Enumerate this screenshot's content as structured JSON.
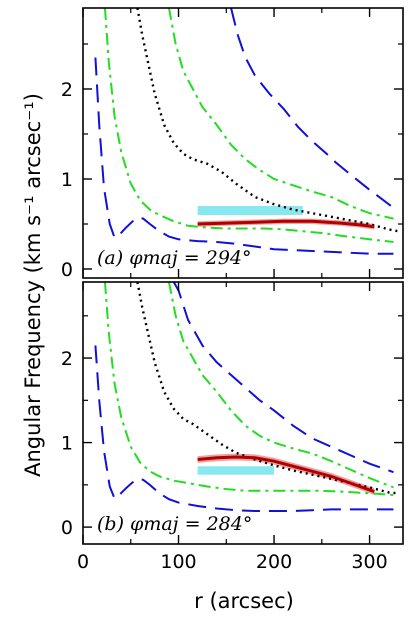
{
  "chart_data": [
    {
      "type": "line",
      "panel": "a",
      "annotation": "(a) φmaj = 294°",
      "xlim": [
        0,
        335
      ],
      "ylim": [
        -0.1,
        2.9
      ],
      "x_ticks": [
        0,
        100,
        200,
        300
      ],
      "y_ticks": [
        0,
        1,
        2
      ],
      "x_tick_labels_shown": false,
      "series": [
        {
          "style": "dashed",
          "color": "#1010d8",
          "points": [
            [
              13,
              2.35
            ],
            [
              17,
              1.6
            ],
            [
              22,
              0.9
            ],
            [
              28,
              0.5
            ],
            [
              33,
              0.35
            ],
            [
              38,
              0.38
            ],
            [
              45,
              0.46
            ],
            [
              52,
              0.53
            ],
            [
              58,
              0.57
            ],
            [
              63,
              0.56
            ],
            [
              70,
              0.5
            ],
            [
              80,
              0.42
            ],
            [
              90,
              0.36
            ],
            [
              100,
              0.33
            ],
            [
              120,
              0.31
            ],
            [
              140,
              0.3
            ],
            [
              160,
              0.28
            ],
            [
              180,
              0.25
            ],
            [
              200,
              0.22
            ],
            [
              220,
              0.21
            ],
            [
              240,
              0.2
            ],
            [
              260,
              0.19
            ],
            [
              280,
              0.18
            ],
            [
              300,
              0.17
            ],
            [
              325,
              0.17
            ]
          ]
        },
        {
          "style": "dashdot",
          "color": "#22dd22",
          "points": [
            [
              23,
              2.9
            ],
            [
              27,
              2.3
            ],
            [
              33,
              1.7
            ],
            [
              40,
              1.3
            ],
            [
              50,
              0.95
            ],
            [
              60,
              0.76
            ],
            [
              70,
              0.66
            ],
            [
              80,
              0.6
            ],
            [
              95,
              0.53
            ],
            [
              110,
              0.48
            ],
            [
              130,
              0.46
            ],
            [
              150,
              0.45
            ],
            [
              170,
              0.45
            ],
            [
              190,
              0.45
            ],
            [
              210,
              0.44
            ],
            [
              230,
              0.42
            ],
            [
              250,
              0.4
            ],
            [
              270,
              0.37
            ],
            [
              300,
              0.33
            ],
            [
              325,
              0.3
            ]
          ]
        },
        {
          "style": "dotted",
          "color": "#000000",
          "points": [
            [
              57,
              2.9
            ],
            [
              62,
              2.6
            ],
            [
              68,
              2.3
            ],
            [
              75,
              1.95
            ],
            [
              85,
              1.6
            ],
            [
              95,
              1.4
            ],
            [
              105,
              1.28
            ],
            [
              115,
              1.22
            ],
            [
              130,
              1.17
            ],
            [
              145,
              1.08
            ],
            [
              160,
              0.95
            ],
            [
              180,
              0.8
            ],
            [
              200,
              0.72
            ],
            [
              220,
              0.66
            ],
            [
              240,
              0.62
            ],
            [
              260,
              0.58
            ],
            [
              280,
              0.54
            ],
            [
              300,
              0.5
            ],
            [
              320,
              0.44
            ],
            [
              330,
              0.42
            ]
          ]
        },
        {
          "style": "dashdot",
          "color": "#22dd22",
          "points": [
            [
              90,
              2.9
            ],
            [
              97,
              2.5
            ],
            [
              105,
              2.2
            ],
            [
              115,
              2.0
            ],
            [
              125,
              1.8
            ],
            [
              140,
              1.6
            ],
            [
              155,
              1.38
            ],
            [
              170,
              1.22
            ],
            [
              185,
              1.1
            ],
            [
              200,
              1.0
            ],
            [
              220,
              0.93
            ],
            [
              240,
              0.86
            ],
            [
              260,
              0.8
            ],
            [
              280,
              0.7
            ],
            [
              300,
              0.62
            ],
            [
              325,
              0.56
            ]
          ]
        },
        {
          "style": "dashed",
          "color": "#1010d8",
          "points": [
            [
              155,
              2.9
            ],
            [
              162,
              2.6
            ],
            [
              170,
              2.35
            ],
            [
              180,
              2.15
            ],
            [
              195,
              1.95
            ],
            [
              210,
              1.78
            ],
            [
              225,
              1.58
            ],
            [
              240,
              1.42
            ],
            [
              255,
              1.28
            ],
            [
              265,
              1.18
            ],
            [
              280,
              1.05
            ],
            [
              300,
              0.88
            ],
            [
              325,
              0.68
            ]
          ]
        }
      ],
      "band": {
        "color": "#88e8f0",
        "x": [
          120,
          230
        ],
        "y_low": 0.6,
        "y_high": 0.7
      },
      "model": {
        "color": "#b00000",
        "band_color": "#f0a0a0",
        "points": [
          [
            120,
            0.5
          ],
          [
            150,
            0.51
          ],
          [
            180,
            0.52
          ],
          [
            210,
            0.53
          ],
          [
            240,
            0.53
          ],
          [
            270,
            0.51
          ],
          [
            290,
            0.49
          ],
          [
            305,
            0.47
          ]
        ],
        "halfwidth": 0.03
      }
    },
    {
      "type": "line",
      "panel": "b",
      "annotation": "(b) φmaj = 284°",
      "xlim": [
        0,
        335
      ],
      "ylim": [
        -0.2,
        2.9
      ],
      "x_ticks": [
        0,
        100,
        200,
        300
      ],
      "y_ticks": [
        0,
        1,
        2
      ],
      "x_tick_labels": [
        "0",
        "100",
        "200",
        "300"
      ],
      "xlabel": "r (arcsec)",
      "series": [
        {
          "style": "dashed",
          "color": "#1010d8",
          "points": [
            [
              13,
              2.15
            ],
            [
              17,
              1.5
            ],
            [
              22,
              0.9
            ],
            [
              28,
              0.48
            ],
            [
              33,
              0.34
            ],
            [
              38,
              0.38
            ],
            [
              45,
              0.46
            ],
            [
              52,
              0.53
            ],
            [
              58,
              0.57
            ],
            [
              63,
              0.56
            ],
            [
              70,
              0.5
            ],
            [
              80,
              0.4
            ],
            [
              90,
              0.33
            ],
            [
              100,
              0.29
            ],
            [
              120,
              0.25
            ],
            [
              140,
              0.22
            ],
            [
              160,
              0.2
            ],
            [
              180,
              0.19
            ],
            [
              200,
              0.19
            ],
            [
              220,
              0.19
            ],
            [
              240,
              0.2
            ],
            [
              260,
              0.21
            ],
            [
              280,
              0.21
            ],
            [
              300,
              0.21
            ],
            [
              325,
              0.21
            ]
          ]
        },
        {
          "style": "dashdot",
          "color": "#22dd22",
          "points": [
            [
              23,
              2.9
            ],
            [
              27,
              2.3
            ],
            [
              33,
              1.7
            ],
            [
              40,
              1.3
            ],
            [
              50,
              0.95
            ],
            [
              60,
              0.76
            ],
            [
              70,
              0.66
            ],
            [
              80,
              0.6
            ],
            [
              95,
              0.55
            ],
            [
              110,
              0.52
            ],
            [
              130,
              0.48
            ],
            [
              150,
              0.45
            ],
            [
              170,
              0.43
            ],
            [
              190,
              0.43
            ],
            [
              210,
              0.43
            ],
            [
              230,
              0.43
            ],
            [
              250,
              0.43
            ],
            [
              270,
              0.42
            ],
            [
              300,
              0.4
            ],
            [
              325,
              0.38
            ]
          ]
        },
        {
          "style": "dotted",
          "color": "#000000",
          "points": [
            [
              57,
              2.9
            ],
            [
              62,
              2.6
            ],
            [
              68,
              2.3
            ],
            [
              75,
              1.95
            ],
            [
              85,
              1.6
            ],
            [
              95,
              1.4
            ],
            [
              105,
              1.28
            ],
            [
              115,
              1.22
            ],
            [
              130,
              1.1
            ],
            [
              145,
              0.98
            ],
            [
              160,
              0.88
            ],
            [
              180,
              0.8
            ],
            [
              200,
              0.73
            ],
            [
              220,
              0.67
            ],
            [
              240,
              0.62
            ],
            [
              260,
              0.57
            ],
            [
              280,
              0.52
            ],
            [
              300,
              0.47
            ],
            [
              320,
              0.41
            ],
            [
              330,
              0.4
            ]
          ]
        },
        {
          "style": "dashdot",
          "color": "#22dd22",
          "points": [
            [
              90,
              2.9
            ],
            [
              97,
              2.5
            ],
            [
              105,
              2.2
            ],
            [
              115,
              2.0
            ],
            [
              125,
              1.8
            ],
            [
              140,
              1.6
            ],
            [
              155,
              1.38
            ],
            [
              170,
              1.2
            ],
            [
              185,
              1.08
            ],
            [
              200,
              1.0
            ],
            [
              220,
              0.93
            ],
            [
              240,
              0.87
            ],
            [
              260,
              0.78
            ],
            [
              280,
              0.68
            ],
            [
              300,
              0.58
            ],
            [
              325,
              0.47
            ]
          ]
        },
        {
          "style": "dashed",
          "color": "#1010d8",
          "points": [
            [
              95,
              2.9
            ],
            [
              100,
              2.8
            ],
            [
              110,
              2.45
            ],
            [
              125,
              2.15
            ],
            [
              140,
              1.95
            ],
            [
              155,
              1.8
            ],
            [
              170,
              1.65
            ],
            [
              185,
              1.5
            ],
            [
              200,
              1.38
            ],
            [
              220,
              1.2
            ],
            [
              240,
              1.05
            ],
            [
              260,
              0.95
            ],
            [
              280,
              0.85
            ],
            [
              300,
              0.75
            ],
            [
              325,
              0.65
            ]
          ]
        }
      ],
      "band": {
        "color": "#88e8f0",
        "x": [
          120,
          200
        ],
        "y_low": 0.62,
        "y_high": 0.72
      },
      "model": {
        "color": "#b00000",
        "band_color": "#f0a0a0",
        "points": [
          [
            120,
            0.8
          ],
          [
            140,
            0.82
          ],
          [
            160,
            0.83
          ],
          [
            180,
            0.82
          ],
          [
            200,
            0.78
          ],
          [
            220,
            0.72
          ],
          [
            240,
            0.66
          ],
          [
            260,
            0.6
          ],
          [
            280,
            0.52
          ],
          [
            300,
            0.44
          ],
          [
            305,
            0.42
          ]
        ],
        "halfwidth": 0.04
      }
    }
  ],
  "ylabel": "Angular Frequency (km s⁻¹ arcsec⁻¹)"
}
